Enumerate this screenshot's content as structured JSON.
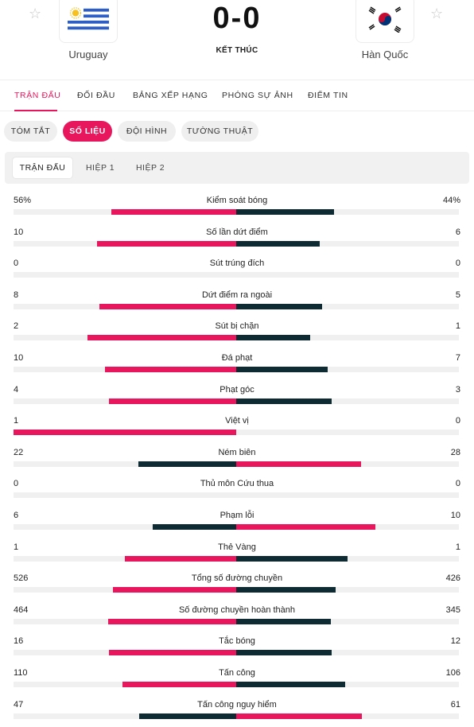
{
  "match": {
    "home_team": "Uruguay",
    "away_team": "Hàn Quốc",
    "score": "0-0",
    "status": "KẾT THÚC"
  },
  "main_tabs": [
    {
      "label": "TRẬN ĐẤU",
      "active": true
    },
    {
      "label": "ĐỐI ĐẦU",
      "active": false
    },
    {
      "label": "BẢNG XẾP HẠNG",
      "active": false
    },
    {
      "label": "PHÓNG SỰ ẢNH",
      "active": false
    },
    {
      "label": "ĐIỂM TIN",
      "active": false
    }
  ],
  "sub_tabs": [
    {
      "label": "TÓM TẮT",
      "active": false
    },
    {
      "label": "SỐ LIỆU",
      "active": true
    },
    {
      "label": "ĐỘI HÌNH",
      "active": false
    },
    {
      "label": "TƯỜNG THUẬT",
      "active": false
    }
  ],
  "periods": [
    {
      "label": "TRẬN ĐẤU",
      "active": true
    },
    {
      "label": "HIỆP 1",
      "active": false
    },
    {
      "label": "HIỆP 2",
      "active": false
    }
  ],
  "colors": {
    "accent": "#e8175d",
    "dark": "#0e2a33",
    "track": "#f0f0f0"
  },
  "stats": [
    {
      "label": "Kiểm soát bóng",
      "home": "56%",
      "away": "44%",
      "home_val": 56,
      "away_val": 44
    },
    {
      "label": "Số lần dứt điểm",
      "home": "10",
      "away": "6",
      "home_val": 10,
      "away_val": 6
    },
    {
      "label": "Sút trúng đích",
      "home": "0",
      "away": "0",
      "home_val": 0,
      "away_val": 0
    },
    {
      "label": "Dứt điểm ra ngoài",
      "home": "8",
      "away": "5",
      "home_val": 8,
      "away_val": 5
    },
    {
      "label": "Sút bị chặn",
      "home": "2",
      "away": "1",
      "home_val": 2,
      "away_val": 1
    },
    {
      "label": "Đá phạt",
      "home": "10",
      "away": "7",
      "home_val": 10,
      "away_val": 7
    },
    {
      "label": "Phạt góc",
      "home": "4",
      "away": "3",
      "home_val": 4,
      "away_val": 3
    },
    {
      "label": "Việt vị",
      "home": "1",
      "away": "0",
      "home_val": 1,
      "away_val": 0
    },
    {
      "label": "Ném biên",
      "home": "22",
      "away": "28",
      "home_val": 22,
      "away_val": 28
    },
    {
      "label": "Thủ môn Cứu thua",
      "home": "0",
      "away": "0",
      "home_val": 0,
      "away_val": 0
    },
    {
      "label": "Phạm lỗi",
      "home": "6",
      "away": "10",
      "home_val": 6,
      "away_val": 10
    },
    {
      "label": "Thẻ Vàng",
      "home": "1",
      "away": "1",
      "home_val": 1,
      "away_val": 1
    },
    {
      "label": "Tổng số đường chuyền",
      "home": "526",
      "away": "426",
      "home_val": 526,
      "away_val": 426
    },
    {
      "label": "Số đường chuyền hoàn thành",
      "home": "464",
      "away": "345",
      "home_val": 464,
      "away_val": 345
    },
    {
      "label": "Tắc bóng",
      "home": "16",
      "away": "12",
      "home_val": 16,
      "away_val": 12
    },
    {
      "label": "Tấn công",
      "home": "110",
      "away": "106",
      "home_val": 110,
      "away_val": 106
    },
    {
      "label": "Tấn công nguy hiểm",
      "home": "47",
      "away": "61",
      "home_val": 47,
      "away_val": 61
    }
  ]
}
